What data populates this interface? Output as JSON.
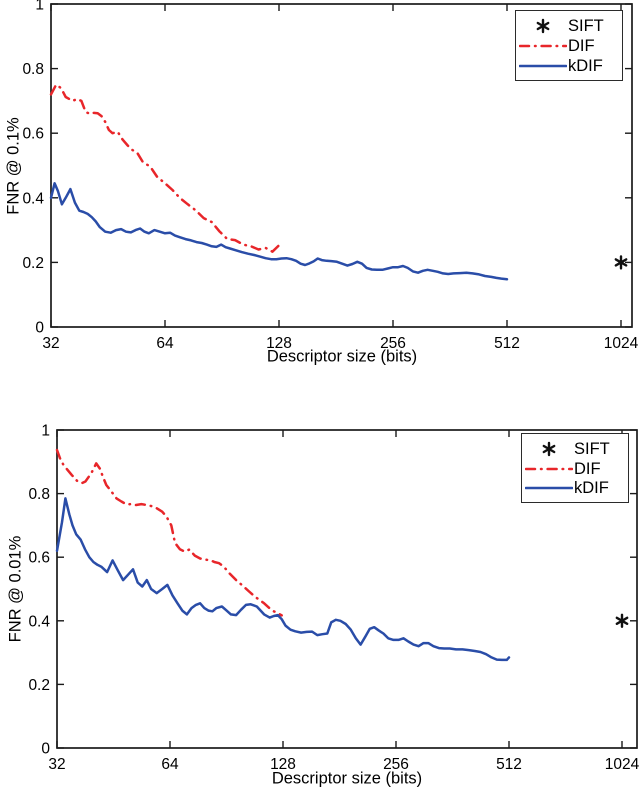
{
  "figure": {
    "background": "#ffffff"
  },
  "colors": {
    "sift": "#111111",
    "dif": "#e8262a",
    "kdif": "#2a4da8",
    "axis": "#1a1a1a",
    "text": "#000000"
  },
  "chart_data": [
    {
      "type": "line",
      "title": "",
      "xlabel": "Descriptor size (bits)",
      "ylabel": "FNR @ 0.1%",
      "xscale": "log2",
      "xlim": [
        32,
        1100
      ],
      "ylim": [
        0,
        1
      ],
      "xticks": [
        32,
        64,
        128,
        256,
        512,
        1024
      ],
      "yticks": [
        0,
        0.2,
        0.4,
        0.6,
        0.8,
        1
      ],
      "grid": false,
      "legend_position": "top-right",
      "legend": [
        "SIFT",
        "DIF",
        "kDIF"
      ],
      "series": [
        {
          "name": "SIFT",
          "type": "scatter",
          "marker": "asterisk",
          "color": "#111111",
          "x": [
            1024
          ],
          "y": [
            0.2
          ]
        },
        {
          "name": "DIF",
          "type": "line",
          "style": "dash-dot",
          "color": "#e8262a",
          "x": [
            32,
            33,
            34,
            35,
            36.5,
            37.5,
            38.5,
            39.5,
            40.5,
            41.5,
            42.5,
            43.5,
            44.5,
            45.5,
            46.5,
            48,
            49.5,
            51,
            52.5,
            54,
            56,
            58.5,
            61,
            64,
            67,
            70,
            73.5,
            77,
            81,
            85,
            89,
            93.5,
            98,
            103,
            108,
            113,
            118,
            123,
            128
          ],
          "y": [
            0.72,
            0.75,
            0.74,
            0.712,
            0.7,
            0.706,
            0.7,
            0.666,
            0.66,
            0.663,
            0.662,
            0.653,
            0.635,
            0.61,
            0.6,
            0.604,
            0.58,
            0.562,
            0.548,
            0.54,
            0.51,
            0.497,
            0.465,
            0.445,
            0.424,
            0.4,
            0.38,
            0.362,
            0.337,
            0.325,
            0.297,
            0.272,
            0.269,
            0.255,
            0.25,
            0.24,
            0.245,
            0.233,
            0.253
          ]
        },
        {
          "name": "kDIF",
          "type": "line",
          "style": "solid",
          "color": "#2a4da8",
          "x": [
            32,
            32.7,
            33.4,
            34.2,
            35,
            36,
            37,
            38,
            39,
            40,
            41,
            42,
            43,
            44.5,
            46,
            47.5,
            49,
            50.5,
            52,
            53.5,
            55,
            56.5,
            58,
            60,
            62,
            64,
            66,
            68,
            70,
            72.5,
            75,
            77.5,
            80,
            82.5,
            85,
            87.5,
            90,
            92.5,
            95,
            98,
            102,
            106,
            110,
            114,
            118,
            122,
            126,
            130,
            134,
            138,
            142,
            146,
            150,
            154,
            158,
            162,
            166,
            171,
            176,
            182,
            188,
            194,
            200,
            206,
            212,
            218,
            225,
            232,
            240,
            248,
            256,
            264,
            272,
            280,
            289,
            298,
            307,
            316,
            326,
            336,
            347,
            358,
            370,
            385,
            400,
            415,
            432,
            448,
            465,
            480,
            495,
            512
          ],
          "y": [
            0.4,
            0.445,
            0.42,
            0.38,
            0.4,
            0.427,
            0.385,
            0.36,
            0.356,
            0.35,
            0.34,
            0.327,
            0.31,
            0.295,
            0.292,
            0.3,
            0.303,
            0.295,
            0.293,
            0.3,
            0.305,
            0.295,
            0.29,
            0.3,
            0.295,
            0.29,
            0.292,
            0.283,
            0.278,
            0.272,
            0.268,
            0.263,
            0.26,
            0.255,
            0.25,
            0.248,
            0.255,
            0.247,
            0.243,
            0.238,
            0.232,
            0.227,
            0.223,
            0.218,
            0.213,
            0.21,
            0.21,
            0.212,
            0.213,
            0.21,
            0.205,
            0.196,
            0.192,
            0.197,
            0.203,
            0.212,
            0.207,
            0.205,
            0.204,
            0.202,
            0.196,
            0.19,
            0.195,
            0.202,
            0.196,
            0.183,
            0.178,
            0.177,
            0.177,
            0.181,
            0.185,
            0.185,
            0.189,
            0.183,
            0.172,
            0.168,
            0.174,
            0.177,
            0.174,
            0.171,
            0.166,
            0.164,
            0.166,
            0.167,
            0.168,
            0.166,
            0.163,
            0.158,
            0.155,
            0.152,
            0.15,
            0.148
          ]
        }
      ]
    },
    {
      "type": "line",
      "title": "",
      "xlabel": "Descriptor size (bits)",
      "ylabel": "FNR @ 0.01%",
      "xscale": "log2",
      "xlim": [
        32,
        1120
      ],
      "ylim": [
        0,
        1
      ],
      "xticks": [
        32,
        64,
        128,
        256,
        512,
        1024
      ],
      "yticks": [
        0,
        0.2,
        0.4,
        0.6,
        0.8,
        1
      ],
      "grid": false,
      "legend_position": "top-right",
      "legend": [
        "SIFT",
        "DIF",
        "kDIF"
      ],
      "series": [
        {
          "name": "SIFT",
          "type": "scatter",
          "marker": "asterisk",
          "color": "#111111",
          "x": [
            1024
          ],
          "y": [
            0.4
          ]
        },
        {
          "name": "DIF",
          "type": "line",
          "style": "dash-dot",
          "color": "#e8262a",
          "x": [
            32,
            32.6,
            33.3,
            35,
            36.2,
            37.3,
            38.1,
            39.5,
            40.7,
            41.6,
            42.4,
            43.3,
            44.7,
            46.1,
            47.5,
            49,
            50.5,
            52,
            53.7,
            55.4,
            57,
            59,
            61,
            62.6,
            64.5,
            66,
            68,
            70,
            72,
            74.5,
            77,
            79.5,
            82,
            84,
            86.5,
            89,
            92,
            96,
            100,
            104,
            108,
            111,
            114,
            118,
            121,
            124,
            127
          ],
          "y": [
            0.937,
            0.911,
            0.89,
            0.859,
            0.84,
            0.833,
            0.838,
            0.864,
            0.895,
            0.879,
            0.853,
            0.827,
            0.806,
            0.785,
            0.775,
            0.766,
            0.767,
            0.764,
            0.767,
            0.764,
            0.761,
            0.754,
            0.743,
            0.728,
            0.7,
            0.645,
            0.625,
            0.618,
            0.624,
            0.605,
            0.596,
            0.592,
            0.591,
            0.585,
            0.581,
            0.57,
            0.55,
            0.528,
            0.51,
            0.492,
            0.475,
            0.465,
            0.455,
            0.439,
            0.43,
            0.424,
            0.417
          ]
        },
        {
          "name": "kDIF",
          "type": "line",
          "style": "solid",
          "color": "#2a4da8",
          "x": [
            32,
            33,
            33.7,
            34.5,
            35.2,
            36,
            37,
            38,
            39,
            40,
            41,
            42,
            43.5,
            45,
            46.5,
            48,
            49.5,
            51,
            52.5,
            54,
            55.5,
            57,
            59,
            61,
            63,
            65,
            67,
            69,
            71,
            73,
            75,
            77,
            79,
            81,
            83,
            85,
            88,
            90,
            93,
            96,
            99,
            102,
            105,
            109,
            114,
            118,
            121,
            124,
            127,
            130,
            134,
            138,
            143,
            148,
            153,
            158,
            163,
            168,
            172,
            177,
            182,
            188,
            194,
            200,
            206,
            212,
            218,
            224,
            230,
            237,
            244,
            252,
            260,
            268,
            276,
            285,
            294,
            303,
            312,
            322,
            333,
            344,
            356,
            370,
            385,
            400,
            415,
            430,
            445,
            460,
            475,
            490,
            505,
            512
          ],
          "y": [
            0.62,
            0.71,
            0.785,
            0.735,
            0.7,
            0.672,
            0.655,
            0.625,
            0.6,
            0.585,
            0.576,
            0.57,
            0.553,
            0.59,
            0.558,
            0.528,
            0.545,
            0.562,
            0.52,
            0.508,
            0.528,
            0.5,
            0.487,
            0.5,
            0.513,
            0.48,
            0.455,
            0.432,
            0.42,
            0.44,
            0.45,
            0.455,
            0.44,
            0.432,
            0.43,
            0.44,
            0.445,
            0.435,
            0.42,
            0.418,
            0.435,
            0.45,
            0.452,
            0.445,
            0.42,
            0.41,
            0.415,
            0.418,
            0.405,
            0.385,
            0.372,
            0.367,
            0.363,
            0.365,
            0.366,
            0.355,
            0.358,
            0.36,
            0.395,
            0.403,
            0.4,
            0.39,
            0.372,
            0.345,
            0.325,
            0.35,
            0.375,
            0.38,
            0.37,
            0.36,
            0.345,
            0.34,
            0.34,
            0.345,
            0.335,
            0.325,
            0.32,
            0.33,
            0.33,
            0.32,
            0.314,
            0.313,
            0.313,
            0.31,
            0.31,
            0.308,
            0.305,
            0.302,
            0.295,
            0.285,
            0.278,
            0.277,
            0.277,
            0.285
          ]
        }
      ]
    }
  ]
}
